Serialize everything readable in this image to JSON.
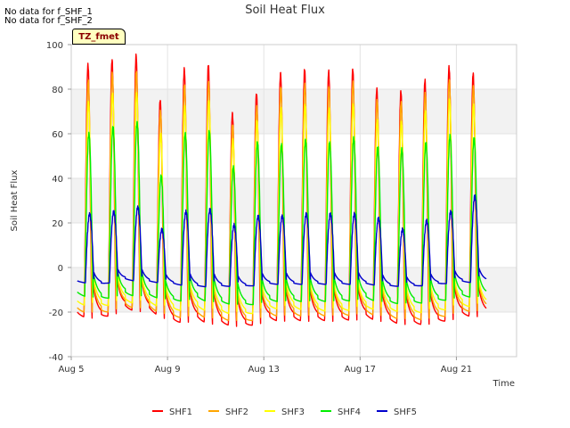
{
  "notes": [
    "No data for f_SHF_1",
    "No data for f_SHF_2"
  ],
  "badge": "TZ_fmet",
  "chart_data": {
    "type": "line",
    "title": "Soil Heat Flux",
    "xlabel": "Time",
    "ylabel": "Soil Heat Flux",
    "xlim": [
      5,
      23.5
    ],
    "ylim": [
      -40,
      100
    ],
    "yticks": [
      -40,
      -20,
      0,
      20,
      40,
      60,
      80,
      100
    ],
    "xticks": [
      {
        "value": 5,
        "label": "Aug 5"
      },
      {
        "value": 9,
        "label": "Aug 9"
      },
      {
        "value": 13,
        "label": "Aug 13"
      },
      {
        "value": 17,
        "label": "Aug 17"
      },
      {
        "value": 21,
        "label": "Aug 21"
      }
    ],
    "day_start": 5.25,
    "n_days": 17,
    "legend_position": "bottom-center",
    "series": [
      {
        "name": "SHF1",
        "color": "#ff0000",
        "peaks": [
          91,
          93,
          95,
          75,
          89,
          91,
          69,
          78,
          87,
          89,
          88,
          89,
          80,
          79,
          84,
          90,
          87
        ],
        "troughs": [
          -20,
          -21,
          -17,
          -18,
          -23,
          -22,
          -24,
          -25,
          -22,
          -22,
          -22,
          -22,
          -21,
          -23,
          -24,
          -23,
          -20
        ]
      },
      {
        "name": "SHF2",
        "color": "#ffa500",
        "peaks": [
          84,
          87,
          88,
          70,
          82,
          83,
          64,
          72,
          81,
          82,
          81,
          83,
          75,
          74,
          78,
          84,
          81
        ],
        "troughs": [
          -18,
          -19,
          -16,
          -17,
          -21,
          -20,
          -22,
          -23,
          -20,
          -20,
          -20,
          -20,
          -19,
          -21,
          -22,
          -21,
          -18
        ]
      },
      {
        "name": "SHF3",
        "color": "#ffff00",
        "peaks": [
          74,
          78,
          78,
          60,
          72,
          75,
          57,
          66,
          71,
          73,
          71,
          73,
          66,
          65,
          70,
          75,
          73
        ],
        "troughs": [
          -15,
          -16,
          -14,
          -15,
          -18,
          -17,
          -19,
          -20,
          -17,
          -17,
          -18,
          -18,
          -17,
          -18,
          -19,
          -18,
          -16
        ]
      },
      {
        "name": "SHF4",
        "color": "#00ee00",
        "peaks": [
          60,
          63,
          65,
          41,
          60,
          61,
          45,
          56,
          55,
          57,
          56,
          58,
          54,
          53,
          56,
          59,
          58
        ],
        "troughs": [
          -11,
          -13,
          -11,
          -12,
          -14,
          -13,
          -15,
          -16,
          -14,
          -14,
          -14,
          -14,
          -13,
          -15,
          -15,
          -14,
          -12
        ]
      },
      {
        "name": "SHF5",
        "color": "#0000cc",
        "peaks": [
          24,
          25,
          27,
          17,
          25,
          26,
          19,
          23,
          23,
          24,
          24,
          24,
          22,
          17,
          21,
          25,
          32
        ],
        "troughs": [
          -6,
          -7,
          -5,
          -6,
          -7,
          -8,
          -8,
          -8,
          -7,
          -7,
          -7,
          -7,
          -7,
          -8,
          -8,
          -7,
          -6
        ]
      }
    ]
  }
}
